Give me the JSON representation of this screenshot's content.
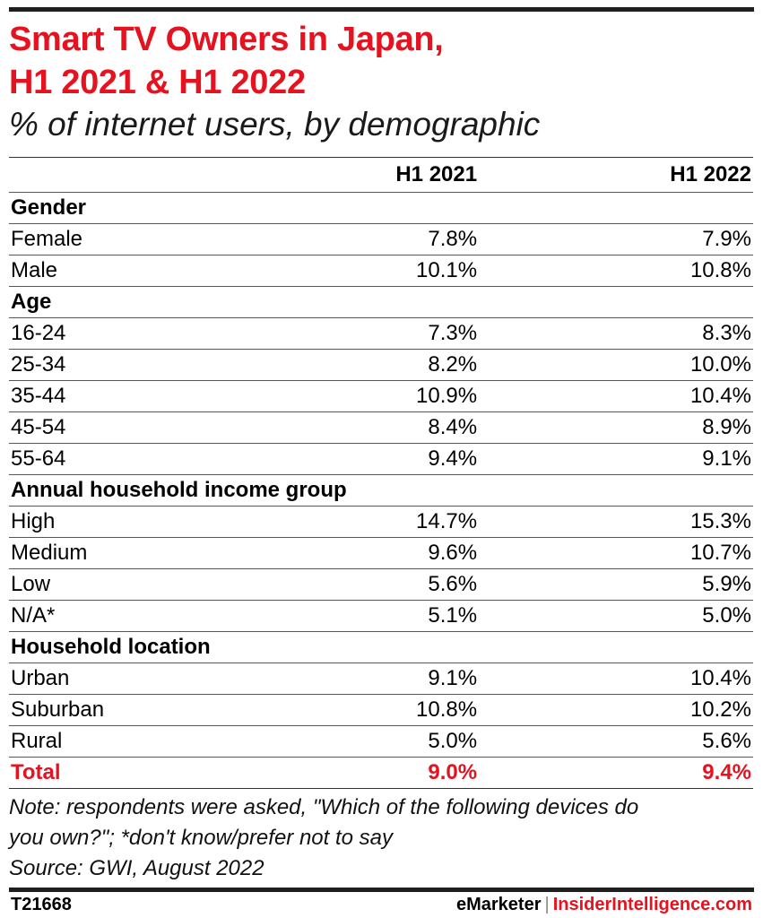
{
  "header": {
    "title_line1": "Smart TV Owners in Japan,",
    "title_line2": "H1 2021 & H1 2022",
    "subtitle": "% of internet users, by demographic"
  },
  "colors": {
    "accent": "#e4131f",
    "rule": "#1f1f1f"
  },
  "chart_data": {
    "type": "table",
    "title": "Smart TV Owners in Japan, H1 2021 & H1 2022",
    "subtitle": "% of internet users, by demographic",
    "columns": [
      "",
      "H1 2021",
      "H1 2022"
    ],
    "rows": [
      {
        "kind": "section",
        "label": "Gender"
      },
      {
        "kind": "data",
        "label": "Female",
        "v1": "7.8%",
        "v2": "7.9%"
      },
      {
        "kind": "data",
        "label": "Male",
        "v1": "10.1%",
        "v2": "10.8%"
      },
      {
        "kind": "section",
        "label": "Age"
      },
      {
        "kind": "data",
        "label": "16-24",
        "v1": "7.3%",
        "v2": "8.3%"
      },
      {
        "kind": "data",
        "label": "25-34",
        "v1": "8.2%",
        "v2": "10.0%"
      },
      {
        "kind": "data",
        "label": "35-44",
        "v1": "10.9%",
        "v2": "10.4%"
      },
      {
        "kind": "data",
        "label": "45-54",
        "v1": "8.4%",
        "v2": "8.9%"
      },
      {
        "kind": "data",
        "label": "55-64",
        "v1": "9.4%",
        "v2": "9.1%"
      },
      {
        "kind": "section",
        "label": "Annual household income group"
      },
      {
        "kind": "data",
        "label": "High",
        "v1": "14.7%",
        "v2": "15.3%"
      },
      {
        "kind": "data",
        "label": "Medium",
        "v1": "9.6%",
        "v2": "10.7%"
      },
      {
        "kind": "data",
        "label": "Low",
        "v1": "5.6%",
        "v2": "5.9%"
      },
      {
        "kind": "data",
        "label": "N/A*",
        "v1": "5.1%",
        "v2": "5.0%"
      },
      {
        "kind": "section",
        "label": "Household location"
      },
      {
        "kind": "data",
        "label": "Urban",
        "v1": "9.1%",
        "v2": "10.4%"
      },
      {
        "kind": "data",
        "label": "Suburban",
        "v1": "10.8%",
        "v2": "10.2%"
      },
      {
        "kind": "data",
        "label": "Rural",
        "v1": "5.0%",
        "v2": "5.6%"
      },
      {
        "kind": "total",
        "label": "Total",
        "v1": "9.0%",
        "v2": "9.4%"
      }
    ]
  },
  "footer": {
    "note_line1": "Note: respondents were asked, \"Which of the following devices do",
    "note_line2": "you own?\"; *don't know/prefer not to say",
    "source": "Source: GWI, August 2022",
    "chart_id": "T21668",
    "brand_left": "eMarketer",
    "brand_sep": "|",
    "brand_right": "InsiderIntelligence.com"
  }
}
